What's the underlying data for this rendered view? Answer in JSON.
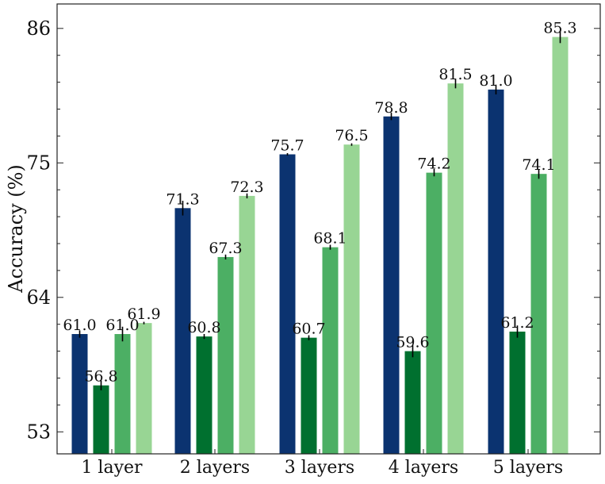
{
  "chart_data": {
    "type": "bar",
    "title": "",
    "xlabel": "",
    "ylabel": "Accuracy (%)",
    "ylim": [
      51.2,
      88.0
    ],
    "yticks": [
      53,
      64,
      75,
      86
    ],
    "grid": false,
    "legend": "none",
    "categories": [
      "1 layer",
      "2 layers",
      "3 layers",
      "4 layers",
      "5 layers"
    ],
    "series": [
      {
        "color": "#0b3370",
        "values": [
          61.0,
          71.3,
          75.7,
          78.8,
          81.0
        ],
        "errors": [
          0.3,
          0.6,
          0.1,
          0.3,
          0.4
        ],
        "labels": [
          "61.0",
          "71.3",
          "75.7",
          "78.8",
          "81.0"
        ]
      },
      {
        "color": "#00702f",
        "values": [
          56.8,
          60.8,
          60.7,
          59.6,
          61.2
        ],
        "errors": [
          0.4,
          0.2,
          0.2,
          0.5,
          0.5
        ],
        "labels": [
          "56.8",
          "60.8",
          "60.7",
          "59.6",
          "61.2"
        ]
      },
      {
        "color": "#4caf64",
        "values": [
          61.0,
          67.3,
          68.1,
          74.2,
          74.1
        ],
        "errors": [
          0.6,
          0.2,
          0.2,
          0.3,
          0.4
        ],
        "labels": [
          "61.0",
          "67.3",
          "68.1",
          "74.2",
          "74.1"
        ]
      },
      {
        "color": "#98d594",
        "values": [
          61.9,
          72.3,
          76.5,
          81.5,
          85.3
        ],
        "errors": [
          0.1,
          0.2,
          0.1,
          0.4,
          0.5
        ],
        "labels": [
          "61.9",
          "72.3",
          "76.5",
          "81.5",
          "85.3"
        ]
      }
    ]
  }
}
